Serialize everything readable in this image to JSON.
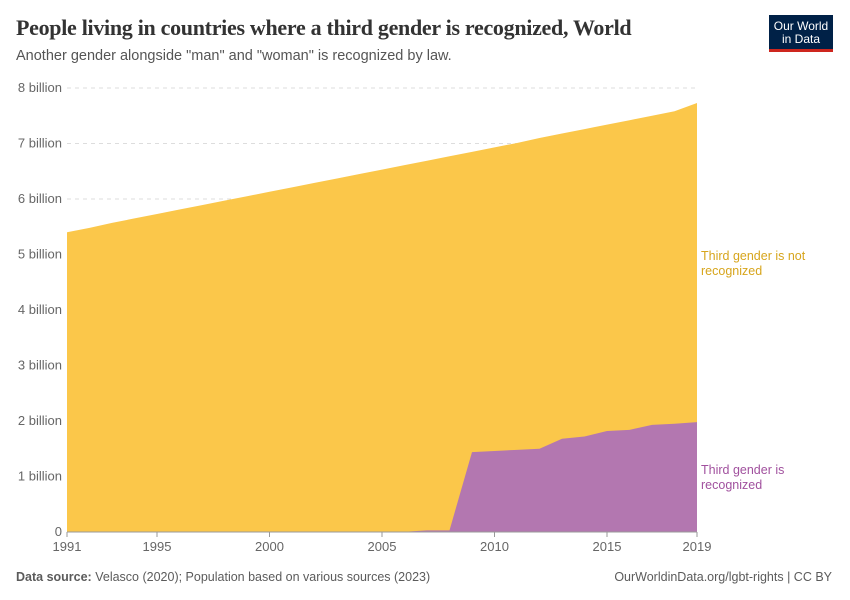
{
  "header": {
    "title": "People living in countries where a third gender is recognized, World",
    "subtitle": "Another gender alongside \"man\" and \"woman\" is recognized by law.",
    "logo": "Our World in Data"
  },
  "footer": {
    "source_label": "Data source:",
    "source_text": "Velasco (2020); Population based on various sources (2023)",
    "link": "OurWorldinData.org/lgbt-rights | CC BY"
  },
  "chart_data": {
    "type": "area",
    "stacked": true,
    "x": [
      1991,
      1992,
      1993,
      1994,
      1995,
      1996,
      1997,
      1998,
      1999,
      2000,
      2001,
      2002,
      2003,
      2004,
      2005,
      2006,
      2007,
      2008,
      2009,
      2010,
      2011,
      2012,
      2013,
      2014,
      2015,
      2016,
      2017,
      2018,
      2019
    ],
    "series": [
      {
        "name": "Third gender is recognized",
        "color": "#b377b0",
        "values": [
          0,
          0,
          0,
          0,
          0,
          0,
          0,
          0,
          0,
          0,
          0,
          0,
          0,
          0,
          0,
          0.005,
          0.03,
          0.03,
          1.44,
          1.46,
          1.48,
          1.5,
          1.68,
          1.72,
          1.82,
          1.84,
          1.93,
          1.95,
          1.98
        ]
      },
      {
        "name": "Third gender is not recognized",
        "color": "#fbc74a",
        "values_total": [
          5.4,
          5.48,
          5.57,
          5.65,
          5.73,
          5.81,
          5.89,
          5.97,
          6.05,
          6.13,
          6.21,
          6.29,
          6.37,
          6.45,
          6.53,
          6.61,
          6.69,
          6.77,
          6.85,
          6.93,
          7.01,
          7.1,
          7.18,
          7.26,
          7.34,
          7.42,
          7.5,
          7.58,
          7.73
        ]
      }
    ],
    "y_ticks": [
      "0",
      "1 billion",
      "2 billion",
      "3 billion",
      "4 billion",
      "5 billion",
      "6 billion",
      "7 billion",
      "8 billion"
    ],
    "x_ticks": [
      "1991",
      "1995",
      "2000",
      "2005",
      "2010",
      "2015",
      "2019"
    ],
    "ylim": [
      0,
      8
    ],
    "grid": "horizontal dashed",
    "legend": "right, inline labels",
    "labels": {
      "not_recognized": "Third gender is not recognized",
      "recognized": "Third gender is recognized"
    }
  }
}
